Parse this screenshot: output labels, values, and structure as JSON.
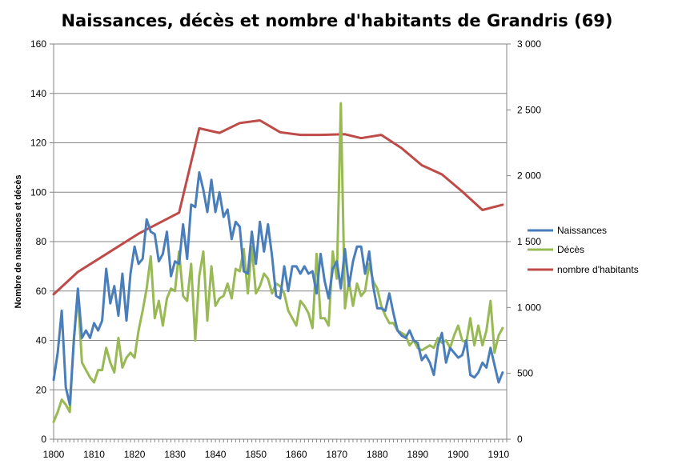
{
  "chart_data": {
    "type": "line",
    "title": "Naissances, décès et nombre d'habitants de Grandris (69)",
    "xlabel": "",
    "ylabel": "Nombre de naissances  et décès",
    "y2label": "",
    "xlim": [
      1800,
      1912
    ],
    "ylim": [
      0,
      160
    ],
    "y2lim": [
      0,
      3000
    ],
    "x_ticks": [
      "1800",
      "1810",
      "1820",
      "1830",
      "1840",
      "1850",
      "1860",
      "1870",
      "1880",
      "1890",
      "1900",
      "1910"
    ],
    "y_ticks": [
      "0",
      "20",
      "40",
      "60",
      "80",
      "100",
      "120",
      "140",
      "160"
    ],
    "y2_ticks": [
      "0",
      "500",
      "1 000",
      "1 500",
      "2 000",
      "2 500",
      "3 000"
    ],
    "grid": "horizontal",
    "legend_position": "right",
    "series": [
      {
        "name": "Naissances",
        "axis": "left",
        "color": "#4a7ebb",
        "x": [
          1800,
          1801,
          1802,
          1803,
          1804,
          1805,
          1806,
          1807,
          1808,
          1809,
          1810,
          1811,
          1812,
          1813,
          1814,
          1815,
          1816,
          1817,
          1818,
          1819,
          1820,
          1821,
          1822,
          1823,
          1824,
          1825,
          1826,
          1827,
          1828,
          1829,
          1830,
          1831,
          1832,
          1833,
          1834,
          1835,
          1836,
          1837,
          1838,
          1839,
          1840,
          1841,
          1842,
          1843,
          1844,
          1845,
          1846,
          1847,
          1848,
          1849,
          1850,
          1851,
          1852,
          1853,
          1854,
          1855,
          1856,
          1857,
          1858,
          1859,
          1860,
          1861,
          1862,
          1863,
          1864,
          1865,
          1866,
          1867,
          1868,
          1869,
          1870,
          1871,
          1872,
          1873,
          1874,
          1875,
          1876,
          1877,
          1878,
          1879,
          1880,
          1881,
          1882,
          1883,
          1884,
          1885,
          1886,
          1887,
          1888,
          1889,
          1890,
          1891,
          1892,
          1893,
          1894,
          1895,
          1896,
          1897,
          1898,
          1899,
          1900,
          1901,
          1902,
          1903,
          1904,
          1905,
          1906,
          1907,
          1908,
          1909,
          1910,
          1911
        ],
        "values": [
          24,
          35,
          52,
          21,
          14,
          40,
          61,
          41,
          44,
          41,
          47,
          44,
          48,
          69,
          55,
          62,
          50,
          67,
          48,
          67,
          78,
          71,
          73,
          89,
          84,
          83,
          72,
          75,
          84,
          66,
          72,
          71,
          87,
          73,
          95,
          94,
          108,
          101,
          92,
          105,
          92,
          100,
          90,
          93,
          81,
          88,
          86,
          68,
          67,
          84,
          71,
          88,
          76,
          87,
          74,
          58,
          57,
          70,
          60,
          70,
          70,
          67,
          70,
          67,
          68,
          59,
          75,
          64,
          57,
          69,
          72,
          61,
          77,
          62,
          72,
          78,
          78,
          67,
          76,
          62,
          53,
          53,
          52,
          59,
          51,
          44,
          42,
          41,
          44,
          40,
          39,
          32,
          34,
          31,
          26,
          38,
          43,
          31,
          37,
          35,
          33,
          34,
          40,
          26,
          25,
          27,
          31,
          29,
          37,
          30,
          23,
          27
        ]
      },
      {
        "name": "Décès",
        "axis": "left",
        "color": "#98b954",
        "x": [
          1800,
          1801,
          1802,
          1803,
          1804,
          1805,
          1806,
          1807,
          1808,
          1809,
          1810,
          1811,
          1812,
          1813,
          1814,
          1815,
          1816,
          1817,
          1818,
          1819,
          1820,
          1821,
          1822,
          1823,
          1824,
          1825,
          1826,
          1827,
          1828,
          1829,
          1830,
          1831,
          1832,
          1833,
          1834,
          1835,
          1836,
          1837,
          1838,
          1839,
          1840,
          1841,
          1842,
          1843,
          1844,
          1845,
          1846,
          1847,
          1848,
          1849,
          1850,
          1851,
          1852,
          1853,
          1854,
          1855,
          1856,
          1857,
          1858,
          1859,
          1860,
          1861,
          1862,
          1863,
          1864,
          1865,
          1866,
          1867,
          1868,
          1869,
          1870,
          1871,
          1872,
          1873,
          1874,
          1875,
          1876,
          1877,
          1878,
          1879,
          1880,
          1881,
          1882,
          1883,
          1884,
          1885,
          1886,
          1887,
          1888,
          1889,
          1890,
          1891,
          1892,
          1893,
          1894,
          1895,
          1896,
          1897,
          1898,
          1899,
          1900,
          1901,
          1902,
          1903,
          1904,
          1905,
          1906,
          1907,
          1908,
          1909,
          1910,
          1911
        ],
        "values": [
          7,
          11,
          16,
          14,
          11,
          41,
          58,
          31,
          28,
          25,
          23,
          28,
          28,
          37,
          31,
          27,
          41,
          29,
          33,
          35,
          33,
          44,
          52,
          61,
          74,
          49,
          56,
          46,
          57,
          61,
          60,
          76,
          58,
          56,
          71,
          40,
          66,
          76,
          48,
          70,
          54,
          57,
          58,
          63,
          57,
          69,
          68,
          77,
          59,
          78,
          59,
          62,
          67,
          65,
          59,
          63,
          62,
          59,
          52,
          49,
          46,
          56,
          54,
          51,
          45,
          75,
          49,
          49,
          46,
          76,
          65,
          136,
          53,
          64,
          54,
          63,
          58,
          60,
          71,
          64,
          61,
          54,
          50,
          47,
          47,
          44,
          43,
          42,
          38,
          40,
          37,
          36,
          37,
          38,
          37,
          41,
          39,
          40,
          37,
          42,
          46,
          40,
          39,
          49,
          38,
          46,
          38,
          44,
          56,
          35,
          42,
          45
        ],
        "note_1870": "peak value 136 at 1871"
      },
      {
        "name": "nombre d'habitants",
        "axis": "right",
        "color": "#be4b48",
        "x": [
          1800,
          1806,
          1821,
          1831,
          1836,
          1841,
          1846,
          1851,
          1856,
          1861,
          1866,
          1872,
          1876,
          1881,
          1886,
          1891,
          1896,
          1901,
          1906,
          1911
        ],
        "values": [
          1100,
          1270,
          1560,
          1720,
          2360,
          2325,
          2400,
          2420,
          2330,
          2310,
          2310,
          2315,
          2285,
          2310,
          2210,
          2080,
          2010,
          1880,
          1740,
          1780
        ]
      }
    ]
  }
}
